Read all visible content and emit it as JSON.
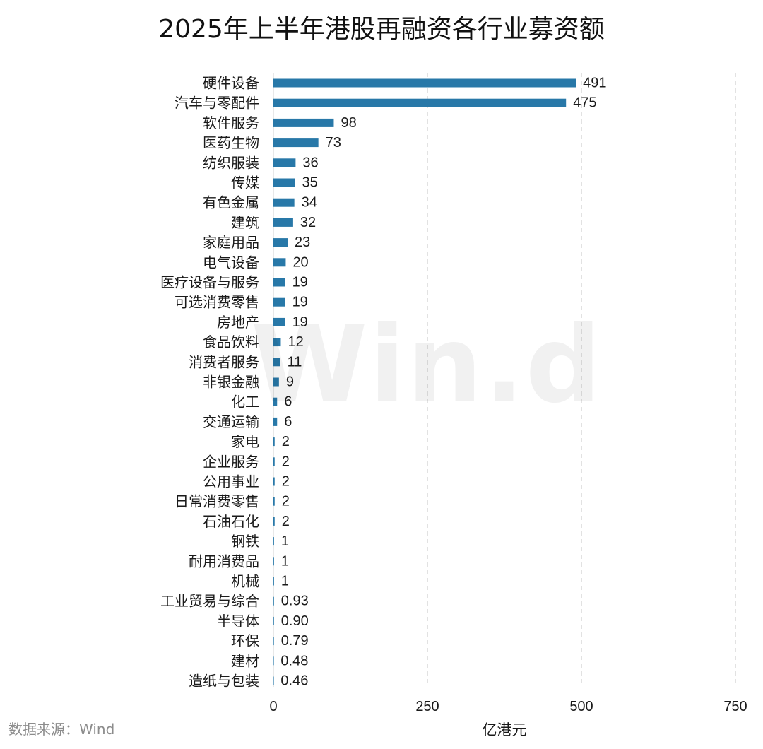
{
  "chart_data": {
    "type": "bar",
    "orientation": "horizontal",
    "title": "2025年上半年港股再融资各行业募资额",
    "xlabel": "亿港元",
    "ylabel": "",
    "xlim": [
      0,
      750
    ],
    "xticks": [
      0,
      250,
      500,
      750
    ],
    "xtick_labels": [
      "0",
      "250",
      "500",
      "750"
    ],
    "grid": "vertical dashed",
    "bar_color": "#2878a8",
    "categories": [
      "硬件设备",
      "汽车与零配件",
      "软件服务",
      "医药生物",
      "纺织服装",
      "传媒",
      "有色金属",
      "建筑",
      "家庭用品",
      "电气设备",
      "医疗设备与服务",
      "可选消费零售",
      "房地产",
      "食品饮料",
      "消费者服务",
      "非银金融",
      "化工",
      "交通运输",
      "家电",
      "企业服务",
      "公用事业",
      "日常消费零售",
      "石油石化",
      "钢铁",
      "耐用消费品",
      "机械",
      "工业贸易与综合",
      "半导体",
      "环保",
      "建材",
      "造纸与包装"
    ],
    "values": [
      491,
      475,
      98,
      73,
      36,
      35,
      34,
      32,
      23,
      20,
      19,
      19,
      19,
      12,
      11,
      9,
      6,
      6,
      2,
      2,
      2,
      2,
      2,
      1,
      1,
      1,
      0.93,
      0.9,
      0.79,
      0.48,
      0.46
    ],
    "value_labels": [
      "491",
      "475",
      "98",
      "73",
      "36",
      "35",
      "34",
      "32",
      "23",
      "20",
      "19",
      "19",
      "19",
      "12",
      "11",
      "9",
      "6",
      "6",
      "2",
      "2",
      "2",
      "2",
      "2",
      "1",
      "1",
      "1",
      "0.93",
      "0.90",
      "0.79",
      "0.48",
      "0.46"
    ]
  },
  "watermark": "Win.d",
  "source": "数据来源：Wind"
}
